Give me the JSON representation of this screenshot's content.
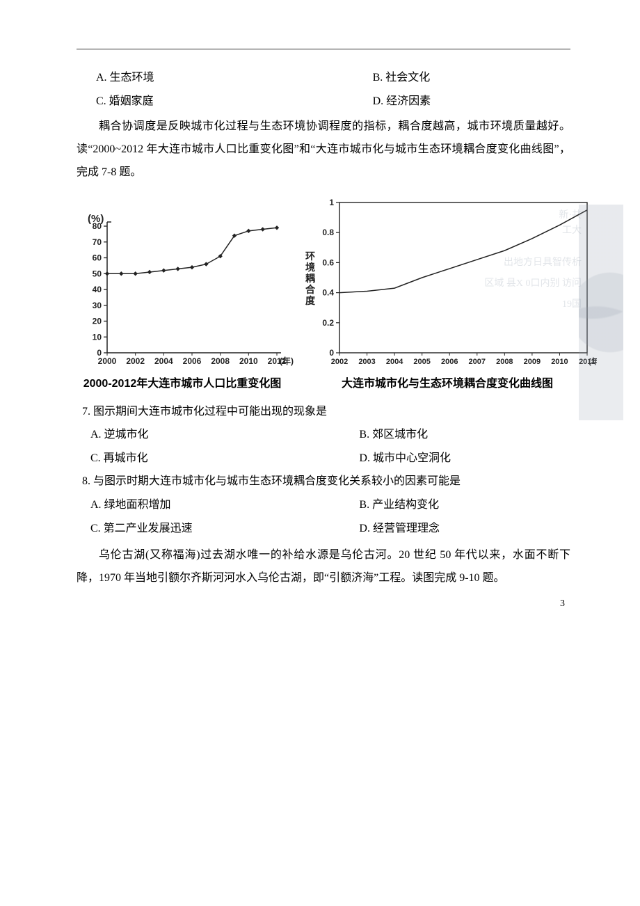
{
  "q6": {
    "options": {
      "A": "A. 生态环境",
      "B": "B. 社会文化",
      "C": "C. 婚姻家庭",
      "D": "D. 经济因素"
    }
  },
  "intro78": "耦合协调度是反映城市化过程与生态环境协调程度的指标，耦合度越高，城市环境质量越好。读“2000~2012 年大连市城市人口比重变化图”和“大连市城市化与城市生态环境耦合度变化曲线图”，完成 7-8 题。",
  "chart1": {
    "type": "line",
    "y_unit": "(%)",
    "x_unit": "(年)",
    "caption": "2000-2012年大连市城市人口比重变化图",
    "x_labels": [
      "2000",
      "2002",
      "2004",
      "2006",
      "2008",
      "2010",
      "2012"
    ],
    "y_ticks": [
      0,
      10,
      20,
      30,
      40,
      50,
      60,
      70,
      80
    ],
    "ylim": [
      0,
      80
    ],
    "xlim": [
      2000,
      2012
    ],
    "points_x": [
      2000,
      2001,
      2002,
      2003,
      2004,
      2005,
      2006,
      2007,
      2008,
      2009,
      2010,
      2011,
      2012
    ],
    "points_y": [
      50,
      50,
      50,
      51,
      52,
      53,
      54,
      56,
      61,
      74,
      77,
      78,
      79
    ],
    "axis_color": "#222222",
    "line_color": "#222222",
    "marker": "diamond",
    "marker_size": 3.2,
    "line_width": 1.5,
    "background_color": "#ffffff",
    "caption_fontsize": 16,
    "tick_fontsize": 12
  },
  "chart2": {
    "type": "line",
    "y_label": "环境耦合度",
    "x_unit": "(年)",
    "caption": "大连市城市化与生态环境耦合度变化曲线图",
    "x_labels": [
      "2002",
      "2003",
      "2004",
      "2005",
      "2006",
      "2007",
      "2008",
      "2009",
      "2010",
      "2011"
    ],
    "y_ticks": [
      0,
      0.2,
      0.4,
      0.6,
      0.8,
      1.0
    ],
    "ylim": [
      0,
      1.0
    ],
    "xlim": [
      2002,
      2011
    ],
    "points_x": [
      2002,
      2003,
      2004,
      2005,
      2006,
      2007,
      2008,
      2009,
      2010,
      2011
    ],
    "points_y": [
      0.4,
      0.41,
      0.43,
      0.5,
      0.56,
      0.62,
      0.68,
      0.76,
      0.85,
      0.95
    ],
    "axis_color": "#222222",
    "line_color": "#222222",
    "line_width": 1.5,
    "background_color": "#ffffff",
    "caption_fontsize": 16,
    "tick_fontsize": 12,
    "ghost_text": [
      "新·共",
      "工大",
      "出地方日具智传析",
      "区域 县X 0口内别 访问",
      "19国"
    ],
    "ghost_color": "rgba(150,160,175,0.28)"
  },
  "q7": {
    "stem": "7. 图示期间大连市城市化过程中可能出现的现象是",
    "options": {
      "A": "A. 逆城市化",
      "B": "B. 郊区城市化",
      "C": "C. 再城市化",
      "D": "D. 城市中心空洞化"
    }
  },
  "q8": {
    "stem": "8. 与图示时期大连市城市化与城市生态环境耦合度变化关系较小的因素可能是",
    "options": {
      "A": "A. 绿地面积增加",
      "B": "B. 产业结构变化",
      "C": "C. 第二产业发展迅速",
      "D": "D. 经营管理理念"
    }
  },
  "intro910": "乌伦古湖(又称福海)过去湖水唯一的补给水源是乌伦古河。20 世纪 50 年代以来，水面不断下降，1970 年当地引额尔齐斯河河水入乌伦古湖，即“引额济海”工程。读图完成 9-10 题。",
  "page_number": "3"
}
